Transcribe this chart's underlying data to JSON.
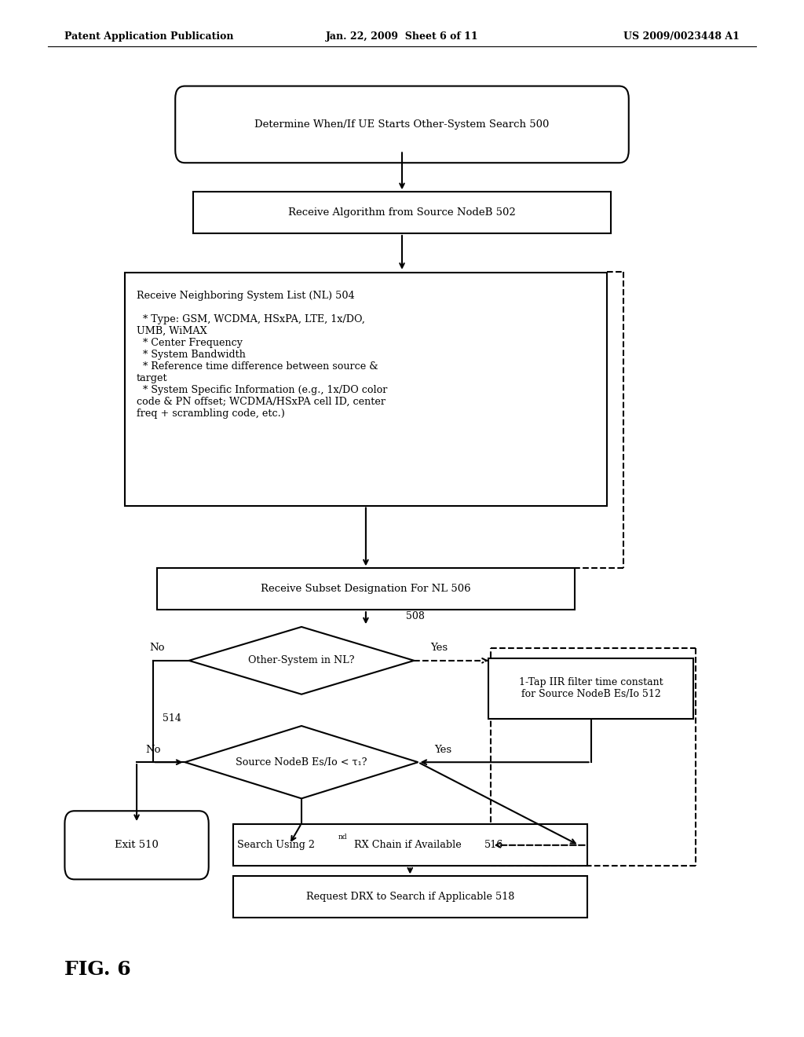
{
  "header_left": "Patent Application Publication",
  "header_mid": "Jan. 22, 2009  Sheet 6 of 11",
  "header_right": "US 2009/0023448 A1",
  "fig_label": "FIG. 6",
  "bg_color": "#ffffff",
  "text_color": "#000000",
  "n500_text": "Determine When/If UE Starts Other-System Search 500",
  "n502_text": "Receive Algorithm from Source NodeB 502",
  "n504_text": "Receive Neighboring System List (NL) 504\n\n  * Type: GSM, WCDMA, HSxPA, LTE, 1x/DO,\nUMB, WiMAX\n  * Center Frequency\n  * System Bandwidth\n  * Reference time difference between source &\ntarget\n  * System Specific Information (e.g., 1x/DO color\ncode & PN offset; WCDMA/HSxPA cell ID, center\nfreq + scrambling code, etc.)",
  "n506_text": "Receive Subset Designation For NL 506",
  "n508_text": "Other-System in NL?",
  "n512_text": "1-Tap IIR filter time constant\nfor Source NodeB Es/Io 512",
  "n514_text": "Source NodeB Es/Io < τ₁?",
  "n516_text_pre": "Search Using 2",
  "n516_text_sup": "nd",
  "n516_text_post": " RX Chain if Available ",
  "n516_num": "516",
  "n518_text": "Request DRX to Search if Applicable 518",
  "exit_text": "Exit 510"
}
